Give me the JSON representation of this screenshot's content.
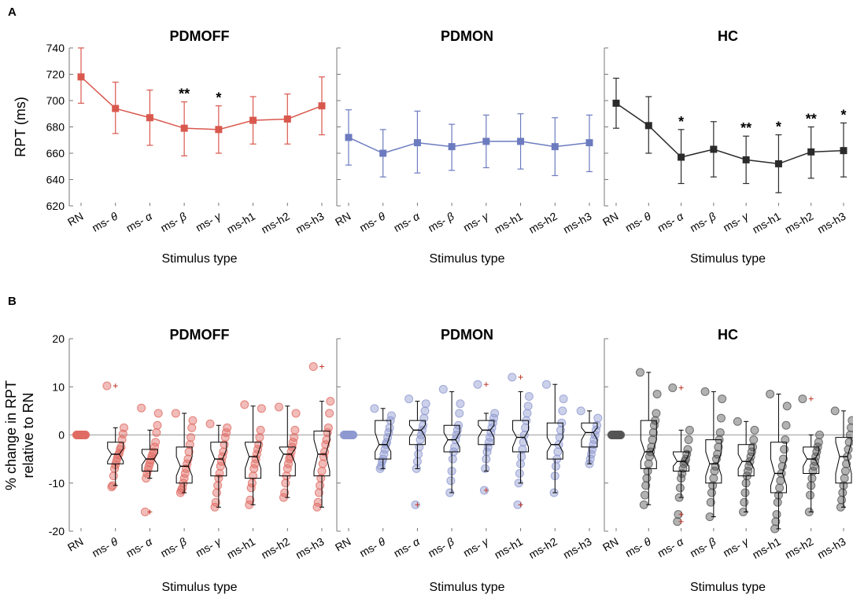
{
  "panel_labels": [
    "A",
    "B"
  ],
  "chart_data": [
    {
      "type": "line",
      "panel": "A",
      "ylabel": "RPT (ms)",
      "xlabel": "Stimulus type",
      "ylim": [
        620,
        740
      ],
      "yticks": [
        620,
        640,
        660,
        680,
        700,
        720,
        740
      ],
      "categories": [
        "RN",
        "ms-θ",
        "ms-α",
        "ms-β",
        "ms-γ",
        "ms-h1",
        "ms-h2",
        "ms-h3"
      ],
      "subplots": [
        {
          "title": "PDMOFF",
          "color": "#d9584e",
          "values": [
            718,
            694,
            687,
            679,
            678,
            685,
            686,
            696
          ],
          "err_low": [
            698,
            675,
            666,
            658,
            660,
            667,
            667,
            674
          ],
          "err_high": [
            740,
            714,
            708,
            699,
            696,
            703,
            705,
            718
          ],
          "stars": [
            "",
            "",
            "",
            "**",
            "*",
            "",
            "",
            ""
          ]
        },
        {
          "title": "PDMON",
          "color": "#6c7bbf",
          "values": [
            672,
            660,
            668,
            665,
            669,
            669,
            665,
            668
          ],
          "err_low": [
            651,
            642,
            645,
            647,
            649,
            648,
            643,
            646
          ],
          "err_high": [
            693,
            678,
            692,
            682,
            689,
            690,
            687,
            689
          ],
          "stars": [
            "",
            "",
            "",
            "",
            "",
            "",
            "",
            ""
          ]
        },
        {
          "title": "HC",
          "color": "#2b2b2b",
          "values": [
            698,
            681,
            657,
            663,
            655,
            652,
            661,
            662
          ],
          "err_low": [
            679,
            660,
            637,
            642,
            637,
            630,
            641,
            642
          ],
          "err_high": [
            717,
            703,
            678,
            684,
            673,
            674,
            680,
            683
          ],
          "stars": [
            "",
            "",
            "*",
            "",
            "**",
            "*",
            "**",
            "*"
          ]
        }
      ]
    },
    {
      "type": "box",
      "panel": "B",
      "ylabel_line1": "% change in RPT",
      "ylabel_line2": "relative to RN",
      "xlabel": "Stimulus type",
      "ylim": [
        -20,
        20
      ],
      "yticks": [
        -20,
        -10,
        0,
        10,
        20
      ],
      "categories": [
        "RN",
        "ms-θ",
        "ms-α",
        "ms-β",
        "ms-γ",
        "ms-h1",
        "ms-h2",
        "ms-h3"
      ],
      "subplots": [
        {
          "title": "PDMOFF",
          "color": "#e06b63",
          "boxes": [
            {
              "q1": 0,
              "median": 0,
              "q3": 0,
              "notch_low": 0,
              "notch_high": 0,
              "wlow": 0,
              "whigh": 0,
              "outliers": []
            },
            {
              "q1": -6.0,
              "median": -4.0,
              "q3": -1.5,
              "notch_low": -5.5,
              "notch_high": -2.8,
              "wlow": -10.5,
              "whigh": 1.5,
              "outliers": [
                10.2
              ]
            },
            {
              "q1": -7.5,
              "median": -5.0,
              "q3": -3.0,
              "notch_low": -6.2,
              "notch_high": -3.8,
              "wlow": -9.0,
              "whigh": 1.0,
              "outliers": [
                -16.0
              ]
            },
            {
              "q1": -10.0,
              "median": -6.5,
              "q3": -2.5,
              "notch_low": -8.5,
              "notch_high": -4.5,
              "wlow": -12.0,
              "whigh": 4.5,
              "outliers": []
            },
            {
              "q1": -8.5,
              "median": -5.0,
              "q3": -1.5,
              "notch_low": -7.0,
              "notch_high": -3.0,
              "wlow": -15.0,
              "whigh": 2.0,
              "outliers": []
            },
            {
              "q1": -9.0,
              "median": -4.5,
              "q3": -1.5,
              "notch_low": -7.0,
              "notch_high": -2.0,
              "wlow": -14.5,
              "whigh": 6.0,
              "outliers": []
            },
            {
              "q1": -8.5,
              "median": -4.0,
              "q3": -2.5,
              "notch_low": -6.0,
              "notch_high": -2.8,
              "wlow": -13.0,
              "whigh": 6.0,
              "outliers": []
            },
            {
              "q1": -8.5,
              "median": -4.0,
              "q3": 0.8,
              "notch_low": -7.5,
              "notch_high": -1.0,
              "wlow": -15.0,
              "whigh": 7.0,
              "outliers": [
                14.2
              ]
            }
          ],
          "points": [
            [
              0,
              0,
              0,
              0,
              0,
              0,
              0,
              0,
              0,
              0,
              0,
              0,
              0,
              0,
              0,
              0,
              0,
              0,
              0,
              0
            ],
            [
              10.2,
              1.5,
              0.2,
              -1.0,
              -2.5,
              -3.0,
              -3.8,
              -4.2,
              -4.8,
              -5.5,
              -6.2,
              -7.0,
              -8.5,
              -10.5,
              -10.8
            ],
            [
              5.6,
              4.5,
              2.0,
              0.5,
              -1.5,
              -2.5,
              -3.5,
              -4.0,
              -4.5,
              -5.2,
              -5.8,
              -6.5,
              -7.2,
              -8.0,
              -9.0,
              -16.0
            ],
            [
              4.5,
              3.0,
              1.5,
              -0.5,
              -2.0,
              -3.5,
              -5.0,
              -6.0,
              -7.0,
              -8.0,
              -9.0,
              -10.0,
              -11.0,
              -11.5,
              -12.0
            ],
            [
              2.3,
              1.5,
              0.5,
              -0.5,
              -2.0,
              -3.5,
              -4.5,
              -5.5,
              -6.5,
              -8.0,
              -9.0,
              -10.5,
              -12.0,
              -14.0,
              -15.0
            ],
            [
              6.3,
              5.5,
              1.0,
              -0.5,
              -2.0,
              -3.0,
              -4.0,
              -5.0,
              -6.0,
              -7.0,
              -8.5,
              -10.0,
              -11.0,
              -13.5,
              -14.5
            ],
            [
              5.8,
              4.5,
              1.0,
              -0.5,
              -1.5,
              -2.5,
              -3.5,
              -4.5,
              -5.0,
              -6.0,
              -7.0,
              -8.5,
              -10.0,
              -12.0,
              -13.0
            ],
            [
              14.2,
              7.0,
              4.5,
              1.5,
              0.5,
              -1.0,
              -2.0,
              -3.5,
              -4.5,
              -6.0,
              -7.5,
              -9.0,
              -10.5,
              -12.0,
              -14.0,
              -15.0
            ]
          ]
        },
        {
          "title": "PDMON",
          "color": "#8f99d0",
          "boxes": [
            {
              "q1": 0,
              "median": 0,
              "q3": 0,
              "notch_low": 0,
              "notch_high": 0,
              "wlow": 0,
              "whigh": 0,
              "outliers": []
            },
            {
              "q1": -5.0,
              "median": -2.0,
              "q3": 3.0,
              "notch_low": -3.5,
              "notch_high": 0.5,
              "wlow": -7.0,
              "whigh": 5.5,
              "outliers": []
            },
            {
              "q1": -2.0,
              "median": 1.0,
              "q3": 3.0,
              "notch_low": -0.5,
              "notch_high": 2.0,
              "wlow": -7.0,
              "whigh": 7.0,
              "outliers": [
                -14.5
              ]
            },
            {
              "q1": -3.5,
              "median": -1.0,
              "q3": 2.0,
              "notch_low": -2.5,
              "notch_high": 0.5,
              "wlow": -12.0,
              "whigh": 9.0,
              "outliers": []
            },
            {
              "q1": -2.0,
              "median": 1.0,
              "q3": 3.0,
              "notch_low": -0.5,
              "notch_high": 2.0,
              "wlow": -7.5,
              "whigh": 4.5,
              "outliers": [
                10.5,
                -11.5
              ]
            },
            {
              "q1": -3.5,
              "median": -0.5,
              "q3": 3.0,
              "notch_low": -2.5,
              "notch_high": 1.0,
              "wlow": -10.0,
              "whigh": 9.0,
              "outliers": [
                12.0,
                -14.5
              ]
            },
            {
              "q1": -5.0,
              "median": -2.0,
              "q3": 2.5,
              "notch_low": -3.5,
              "notch_high": -0.5,
              "wlow": -12.0,
              "whigh": 10.5,
              "outliers": []
            },
            {
              "q1": -2.5,
              "median": 0.5,
              "q3": 2.5,
              "notch_low": -1.0,
              "notch_high": 1.5,
              "wlow": -6.0,
              "whigh": 5.0,
              "outliers": []
            }
          ],
          "points": [
            [
              0,
              0,
              0,
              0,
              0,
              0,
              0,
              0,
              0,
              0,
              0,
              0,
              0,
              0,
              0,
              0,
              0,
              0,
              0,
              0
            ],
            [
              5.5,
              4.0,
              3.0,
              1.5,
              0.5,
              -0.5,
              -1.5,
              -2.0,
              -3.0,
              -4.0,
              -5.0,
              -5.5,
              -6.5,
              -7.0
            ],
            [
              7.5,
              6.5,
              5.0,
              3.5,
              2.0,
              1.0,
              0.0,
              -1.0,
              -2.5,
              -4.0,
              -5.5,
              -7.0,
              -14.5
            ],
            [
              9.5,
              6.5,
              4.5,
              2.0,
              1.0,
              0.0,
              -1.0,
              -2.5,
              -3.5,
              -5.0,
              -7.5,
              -9.5,
              -12.0
            ],
            [
              10.5,
              4.5,
              3.5,
              2.5,
              1.5,
              0.5,
              -0.5,
              -1.5,
              -2.5,
              -3.5,
              -5.0,
              -7.0,
              -11.5
            ],
            [
              12.0,
              8.0,
              6.0,
              4.5,
              3.0,
              1.5,
              0.0,
              -1.5,
              -3.0,
              -4.5,
              -6.0,
              -8.0,
              -10.0,
              -14.5
            ],
            [
              10.5,
              7.5,
              5.0,
              2.5,
              1.0,
              -0.5,
              -2.0,
              -3.5,
              -5.0,
              -6.5,
              -8.5,
              -12.0
            ],
            [
              5.0,
              3.5,
              2.0,
              1.0,
              0.0,
              -1.0,
              -2.0,
              -3.0,
              -4.0,
              -5.0,
              -6.0
            ]
          ]
        },
        {
          "title": "HC",
          "color": "#555555",
          "boxes": [
            {
              "q1": 0,
              "median": 0,
              "q3": 0,
              "notch_low": 0,
              "notch_high": 0,
              "wlow": 0,
              "whigh": 0,
              "outliers": []
            },
            {
              "q1": -7.0,
              "median": -3.5,
              "q3": 3.0,
              "notch_low": -5.5,
              "notch_high": -1.0,
              "wlow": -14.5,
              "whigh": 13.0,
              "outliers": []
            },
            {
              "q1": -7.5,
              "median": -5.5,
              "q3": -3.5,
              "notch_low": -6.5,
              "notch_high": -4.0,
              "wlow": -13.0,
              "whigh": 1.0,
              "outliers": [
                9.8,
                -16.5,
                -18.0
              ]
            },
            {
              "q1": -10.0,
              "median": -6.0,
              "q3": -1.0,
              "notch_low": -8.5,
              "notch_high": -3.5,
              "wlow": -17.0,
              "whigh": 9.0,
              "outliers": []
            },
            {
              "q1": -8.5,
              "median": -5.5,
              "q3": -2.0,
              "notch_low": -7.0,
              "notch_high": -4.0,
              "wlow": -16.0,
              "whigh": 2.8,
              "outliers": []
            },
            {
              "q1": -12.0,
              "median": -8.0,
              "q3": -1.5,
              "notch_low": -10.5,
              "notch_high": -5.0,
              "wlow": -19.5,
              "whigh": 8.5,
              "outliers": []
            },
            {
              "q1": -8.0,
              "median": -5.0,
              "q3": -2.5,
              "notch_low": -6.5,
              "notch_high": -3.5,
              "wlow": -16.0,
              "whigh": 0.0,
              "outliers": [
                7.5
              ]
            },
            {
              "q1": -10.0,
              "median": -4.5,
              "q3": -0.5,
              "notch_low": -8.0,
              "notch_high": -1.5,
              "wlow": -15.0,
              "whigh": 5.0,
              "outliers": []
            }
          ],
          "points": [
            [
              0,
              0,
              0,
              0,
              0,
              0,
              0,
              0,
              0,
              0,
              0,
              0,
              0,
              0,
              0,
              0,
              0,
              0,
              0,
              0
            ],
            [
              13.0,
              8.5,
              4.5,
              3.0,
              2.0,
              0.5,
              -1.0,
              -2.5,
              -3.5,
              -4.5,
              -6.0,
              -7.5,
              -9.0,
              -10.5,
              -12.5,
              -14.5
            ],
            [
              9.8,
              1.0,
              -1.0,
              -3.0,
              -4.0,
              -5.0,
              -5.5,
              -6.0,
              -7.0,
              -8.0,
              -9.0,
              -11.0,
              -13.0,
              -16.5,
              -18.0
            ],
            [
              9.0,
              7.5,
              3.5,
              0.5,
              -1.0,
              -2.5,
              -4.0,
              -5.0,
              -6.5,
              -7.5,
              -9.0,
              -10.5,
              -12.0,
              -14.0,
              -17.0
            ],
            [
              2.8,
              1.0,
              -1.0,
              -2.5,
              -3.5,
              -4.5,
              -5.5,
              -6.5,
              -7.5,
              -8.5,
              -10.0,
              -12.0,
              -14.0,
              -16.0
            ],
            [
              8.5,
              6.0,
              2.0,
              -1.0,
              -3.0,
              -5.0,
              -6.5,
              -8.0,
              -9.5,
              -11.0,
              -12.5,
              -14.0,
              -16.5,
              -18.0,
              -19.5
            ],
            [
              7.5,
              0.0,
              -1.5,
              -2.5,
              -3.5,
              -4.5,
              -5.5,
              -6.5,
              -7.5,
              -9.0,
              -10.5,
              -12.5,
              -16.0
            ],
            [
              5.0,
              3.0,
              1.5,
              0.0,
              -1.5,
              -3.0,
              -4.5,
              -6.0,
              -7.5,
              -9.0,
              -10.5,
              -12.0,
              -13.5,
              -15.0
            ]
          ]
        }
      ]
    }
  ]
}
